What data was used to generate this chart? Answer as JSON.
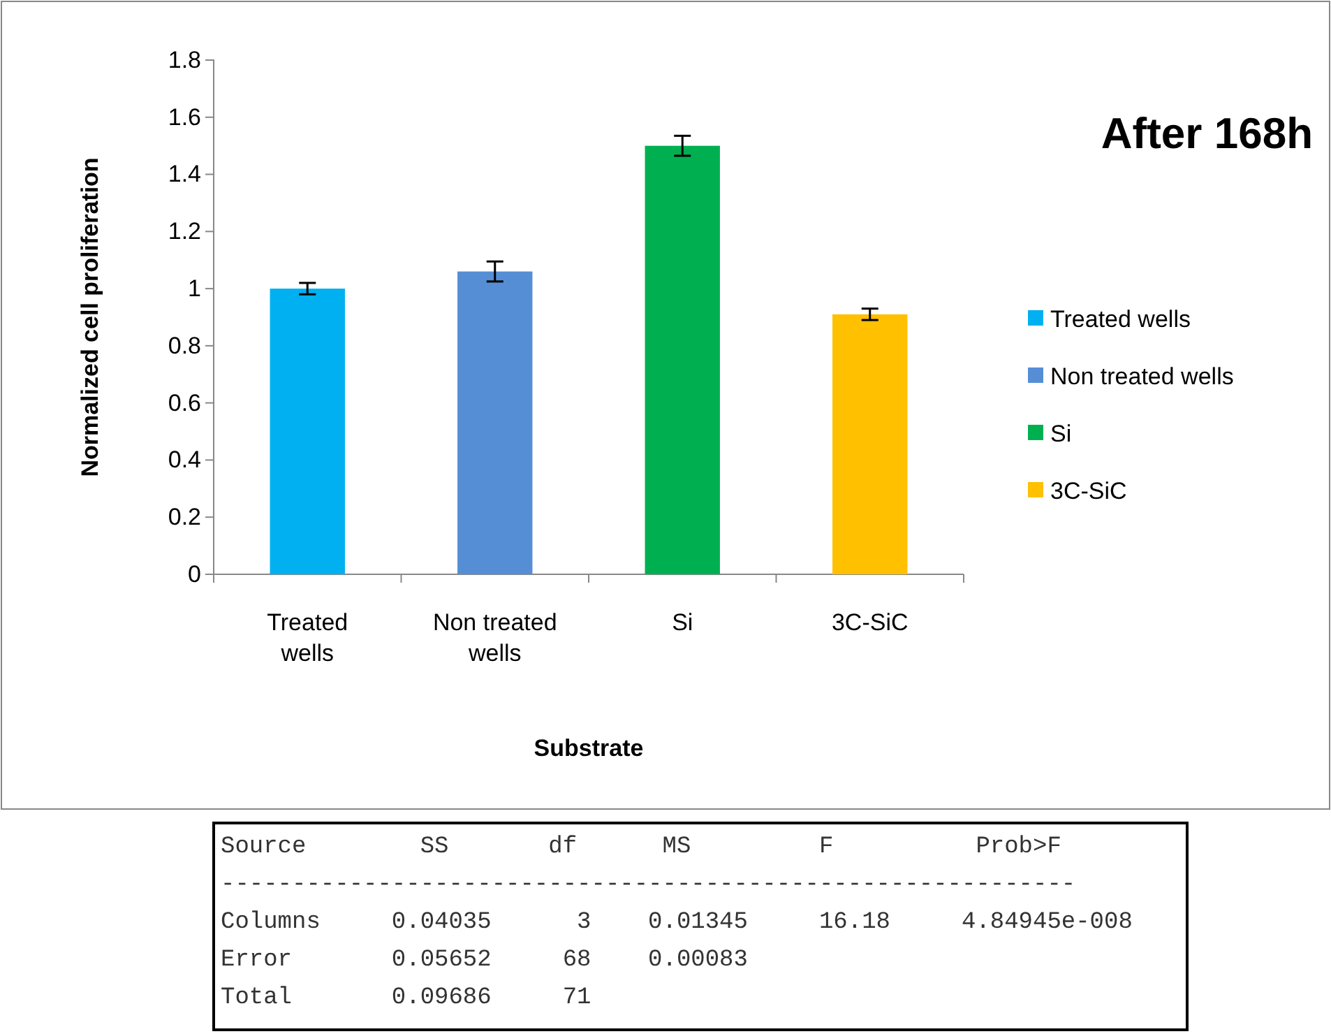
{
  "chart_data": {
    "type": "bar",
    "title": "After 168h",
    "xlabel": "Substrate",
    "ylabel": "Normalized cell proliferation",
    "categories": [
      "Treated wells",
      "Non treated wells",
      "Si",
      "3C-SiC"
    ],
    "series": [
      {
        "name": "Treated wells",
        "color": "#00b0f0",
        "values": [
          1.0,
          null,
          null,
          null
        ],
        "errors": [
          0.02,
          null,
          null,
          null
        ]
      },
      {
        "name": "Non treated wells",
        "color": "#558ed5",
        "values": [
          null,
          1.06,
          null,
          null
        ],
        "errors": [
          null,
          0.035,
          null,
          null
        ]
      },
      {
        "name": "Si",
        "color": "#00b050",
        "values": [
          null,
          null,
          1.5,
          null
        ],
        "errors": [
          null,
          null,
          0.035,
          null
        ]
      },
      {
        "name": "3C-SiC",
        "color": "#ffc000",
        "values": [
          null,
          null,
          null,
          0.91
        ],
        "errors": [
          null,
          null,
          null,
          0.02
        ]
      }
    ],
    "ylim": [
      0,
      1.8
    ],
    "yticks": [
      0,
      {
        "value": 0.2,
        "label": "0.2"
      },
      {
        "value": 0.4,
        "label": "0.4"
      },
      {
        "value": 0.6,
        "label": "0.6"
      },
      {
        "value": 0.8,
        "label": "0.8"
      },
      1,
      {
        "value": 1.2,
        "label": "1.2"
      },
      {
        "value": 1.4,
        "label": "1.4"
      },
      {
        "value": 1.6,
        "label": "1.6"
      },
      {
        "value": 1.8,
        "label": "1.8"
      }
    ],
    "grid": false,
    "legend": "right",
    "annotations": [
      "Source        SS       df      MS         F          Prob>F",
      "------------------------------------------------------------",
      "Columns     0.04035      3    0.01345     16.18     4.84945e-008",
      "Error       0.05652     68    0.00083",
      "Total       0.09686     71"
    ]
  }
}
